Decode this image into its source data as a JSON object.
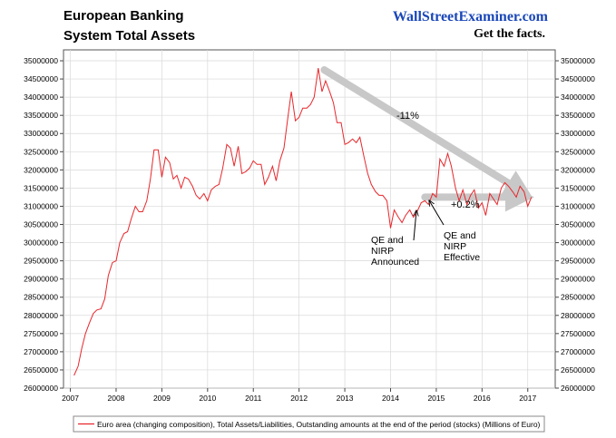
{
  "header": {
    "title_line1": "European Banking",
    "title_line2": "System Total Assets",
    "brand": "WallStreetExaminer.com",
    "tagline": "Get the facts."
  },
  "colors": {
    "series": "#e8262b",
    "arrow": "#c8c8c8",
    "grid": "#d9d9d9",
    "brand": "#1a47b8"
  },
  "annotations": {
    "pct_down": "-11%",
    "pct_flat": "+0.2%",
    "qe_announced": [
      "QE and",
      "NIRP",
      "Announced"
    ],
    "qe_effective": [
      "QE and",
      "NIRP",
      "Effective"
    ]
  },
  "chart_data": {
    "type": "line",
    "title": "European Banking System Total Assets",
    "xlim": [
      2006.85,
      2017.6
    ],
    "ylim": [
      26000000,
      35300000
    ],
    "x_ticks": [
      2007,
      2008,
      2009,
      2010,
      2011,
      2012,
      2013,
      2014,
      2015,
      2016,
      2017
    ],
    "y_ticks": [
      26000000,
      26500000,
      27000000,
      27500000,
      28000000,
      28500000,
      29000000,
      29500000,
      30000000,
      30500000,
      31000000,
      31500000,
      32000000,
      32500000,
      33000000,
      33500000,
      34000000,
      34500000,
      35000000
    ],
    "legend_position": "bottom",
    "grid": true,
    "series": [
      {
        "name": "Euro area (changing composition), Total Assets/Liabilities, Outstanding amounts at the end of the period (stocks) (Millions of Euro)",
        "x": [
          2007.08,
          2007.17,
          2007.25,
          2007.33,
          2007.42,
          2007.5,
          2007.58,
          2007.67,
          2007.75,
          2007.83,
          2007.92,
          2008.0,
          2008.08,
          2008.17,
          2008.25,
          2008.33,
          2008.42,
          2008.5,
          2008.58,
          2008.67,
          2008.75,
          2008.83,
          2008.92,
          2009.0,
          2009.08,
          2009.17,
          2009.25,
          2009.33,
          2009.42,
          2009.5,
          2009.58,
          2009.67,
          2009.75,
          2009.83,
          2009.92,
          2010.0,
          2010.08,
          2010.17,
          2010.25,
          2010.33,
          2010.42,
          2010.5,
          2010.58,
          2010.67,
          2010.75,
          2010.83,
          2010.92,
          2011.0,
          2011.08,
          2011.17,
          2011.25,
          2011.33,
          2011.42,
          2011.5,
          2011.58,
          2011.67,
          2011.75,
          2011.83,
          2011.92,
          2012.0,
          2012.08,
          2012.17,
          2012.25,
          2012.33,
          2012.42,
          2012.5,
          2012.58,
          2012.67,
          2012.75,
          2012.83,
          2012.92,
          2013.0,
          2013.08,
          2013.17,
          2013.25,
          2013.33,
          2013.42,
          2013.5,
          2013.58,
          2013.67,
          2013.75,
          2013.83,
          2013.92,
          2014.0,
          2014.08,
          2014.17,
          2014.25,
          2014.33,
          2014.42,
          2014.5,
          2014.58,
          2014.67,
          2014.75,
          2014.83,
          2014.92,
          2015.0,
          2015.08,
          2015.17,
          2015.25,
          2015.33,
          2015.42,
          2015.5,
          2015.58,
          2015.67,
          2015.75,
          2015.83,
          2015.92,
          2016.0,
          2016.08,
          2016.17,
          2016.25,
          2016.33,
          2016.42,
          2016.5,
          2016.58,
          2016.67,
          2016.75,
          2016.83,
          2016.92,
          2017.0,
          2017.08
        ],
        "values": [
          26350000,
          26600000,
          27100000,
          27500000,
          27800000,
          28050000,
          28150000,
          28180000,
          28450000,
          29100000,
          29450000,
          29500000,
          30000000,
          30250000,
          30300000,
          30650000,
          31000000,
          30850000,
          30850000,
          31150000,
          31750000,
          32550000,
          32550000,
          31800000,
          32350000,
          32200000,
          31750000,
          31850000,
          31500000,
          31800000,
          31750000,
          31550000,
          31300000,
          31200000,
          31350000,
          31150000,
          31450000,
          31550000,
          31600000,
          32050000,
          32700000,
          32600000,
          32100000,
          32650000,
          31900000,
          31950000,
          32050000,
          32250000,
          32150000,
          32150000,
          31600000,
          31800000,
          32100000,
          31700000,
          32250000,
          32600000,
          33400000,
          34150000,
          33350000,
          33450000,
          33700000,
          33700000,
          33800000,
          34000000,
          34800000,
          34150000,
          34450000,
          34150000,
          33850000,
          33300000,
          33300000,
          32700000,
          32750000,
          32850000,
          32750000,
          32900000,
          32350000,
          31900000,
          31600000,
          31400000,
          31300000,
          31300000,
          31150000,
          30400000,
          30900000,
          30700000,
          30550000,
          30750000,
          30900000,
          30700000,
          30850000,
          31100000,
          31150000,
          31050000,
          31350000,
          31250000,
          32300000,
          32100000,
          32450000,
          32100000,
          31500000,
          31150000,
          31450000,
          31050000,
          31300000,
          31450000,
          30950000,
          31100000,
          30750000,
          31350000,
          31200000,
          31050000,
          31500000,
          31650000,
          31550000,
          31400000,
          31250000,
          31550000,
          31400000,
          31000000,
          31250000
        ]
      }
    ]
  }
}
